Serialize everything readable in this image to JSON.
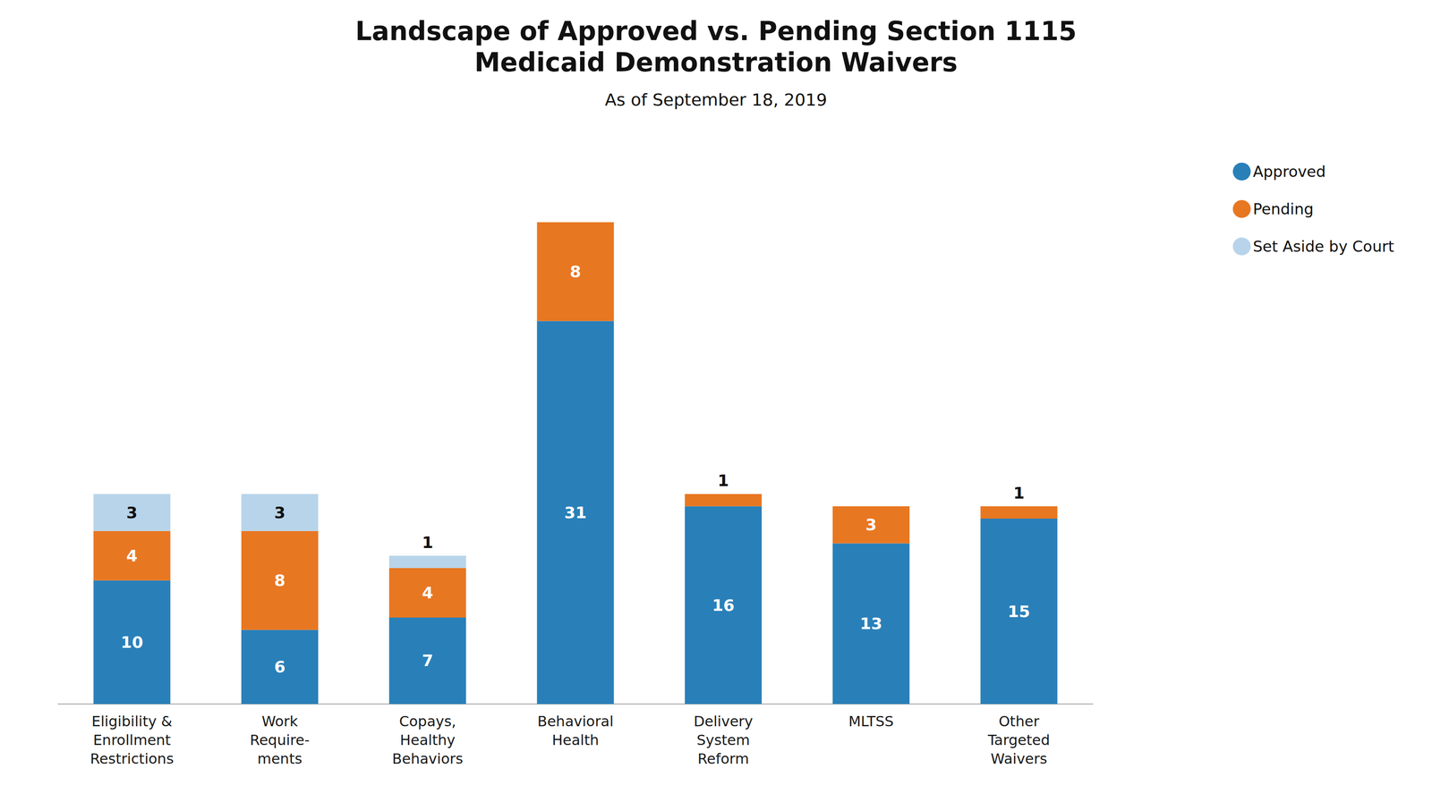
{
  "chart_data": {
    "type": "bar",
    "title": "Landscape of Approved vs. Pending Section 1115\nMedicaid Demonstration Waivers",
    "subtitle": "As of September 18, 2019",
    "categories": [
      "Eligibility &\nEnrollment\nRestrictions",
      "Work\nRequire-\nments",
      "Copays,\nHealthy\nBehaviors",
      "Behavioral\nHealth",
      "Delivery\nSystem\nReform",
      "MLTSS",
      "Other\nTargeted\nWaivers"
    ],
    "series": [
      {
        "name": "Approved",
        "color": "#2980b9",
        "values": [
          10,
          6,
          7,
          31,
          16,
          13,
          15
        ]
      },
      {
        "name": "Pending",
        "color": "#e87722",
        "values": [
          4,
          8,
          4,
          8,
          1,
          3,
          1
        ]
      },
      {
        "name": "Set Aside by Court",
        "color": "#b8d4ea",
        "values": [
          3,
          3,
          1,
          0,
          0,
          0,
          0
        ]
      }
    ],
    "stacked": true,
    "data_labels": true,
    "ylim": [
      0,
      44
    ],
    "tick_labels": "x",
    "grid": false,
    "legend": "upper right"
  }
}
